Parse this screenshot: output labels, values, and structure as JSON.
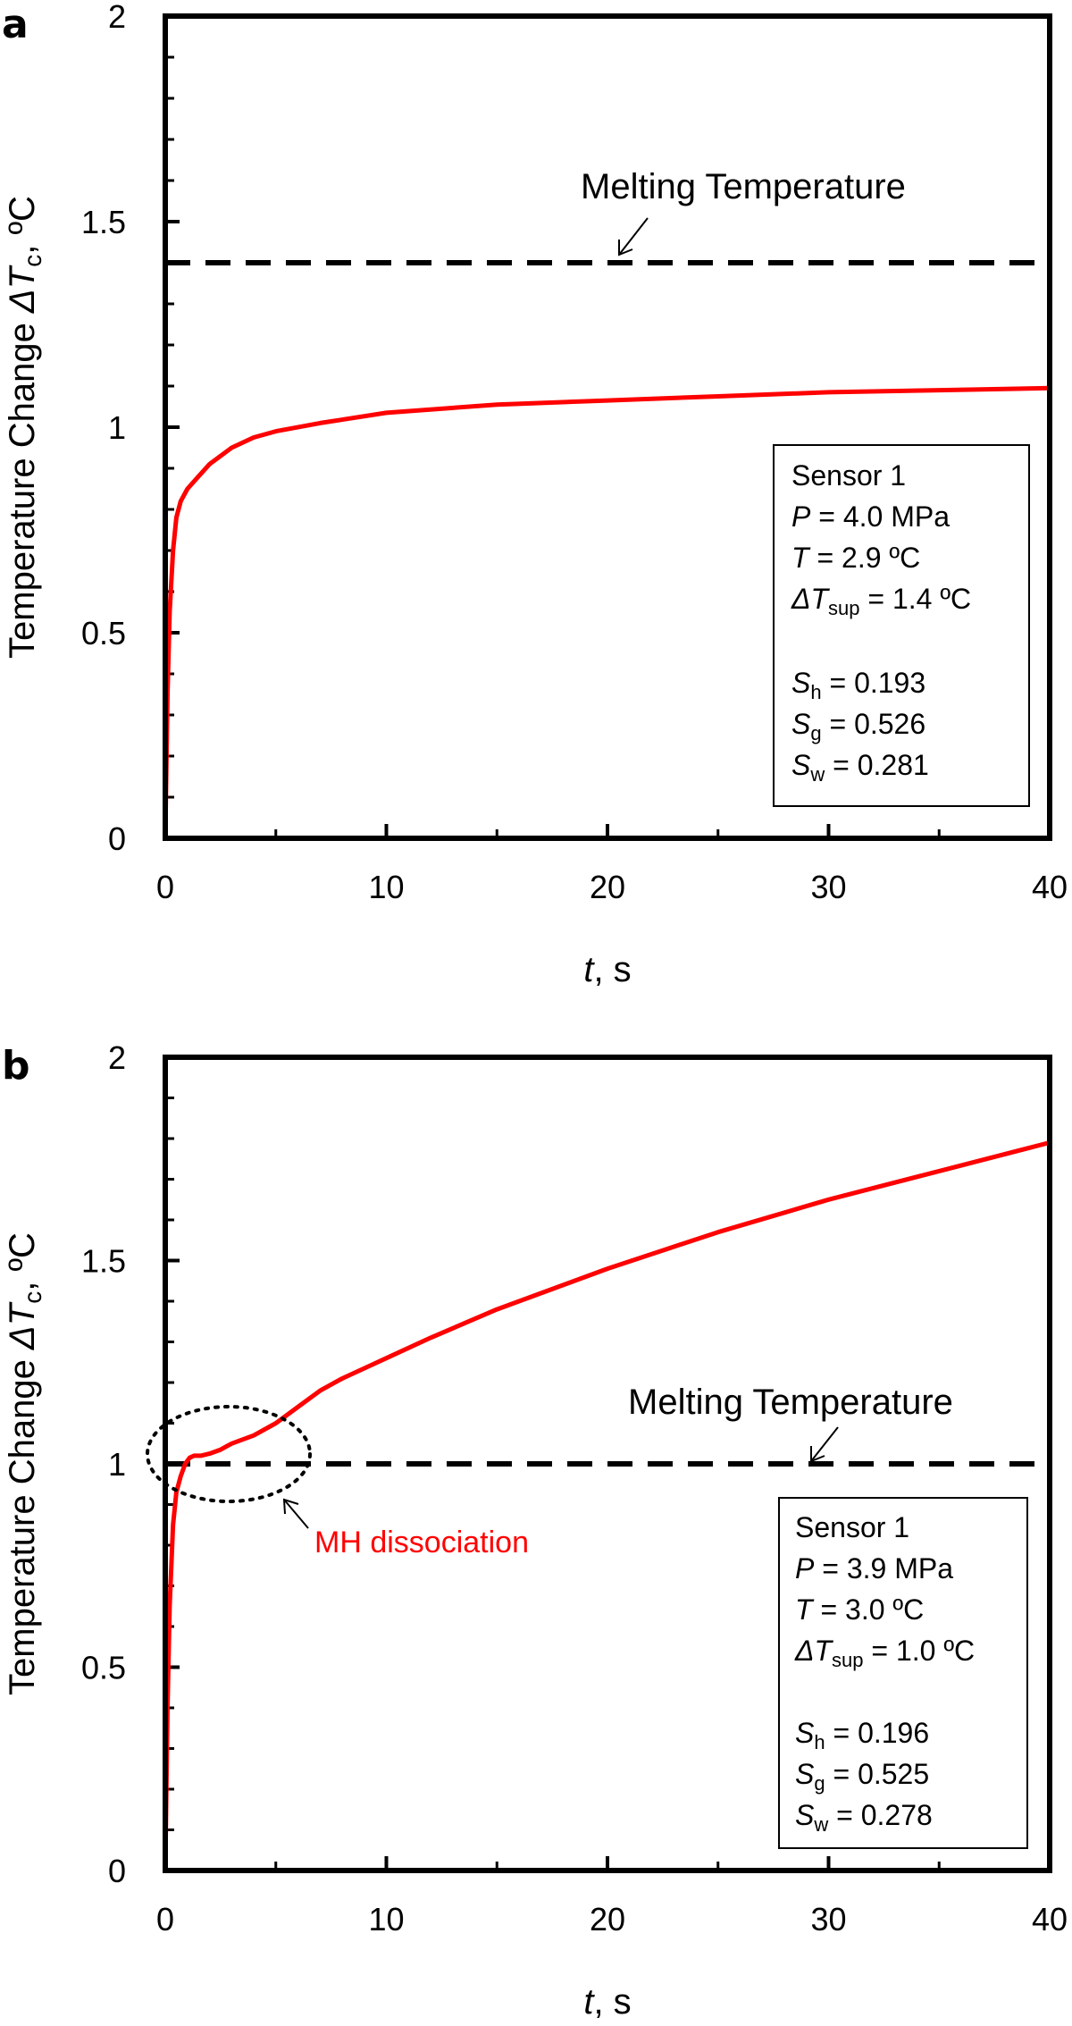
{
  "chart_data": [
    {
      "type": "line",
      "panel_label": "a",
      "xlabel_var": "t",
      "xlabel_unit": ", s",
      "ylabel_pre": "Temperature Change ",
      "ylabel_sym": "ΔT",
      "ylabel_sub": "c",
      "ylabel_unit": ", ºC",
      "xlim": [
        0,
        40
      ],
      "ylim": [
        0,
        2
      ],
      "xticks": [
        "0",
        "10",
        "20",
        "30",
        "40"
      ],
      "yticks": [
        "0",
        "0.5",
        "1",
        "1.5",
        "2"
      ],
      "series": [
        {
          "name": "Sensor 1",
          "color": "#ff0000",
          "x": [
            0,
            0.1,
            0.2,
            0.35,
            0.5,
            0.7,
            1.0,
            1.5,
            2,
            3,
            4,
            5,
            7,
            10,
            15,
            20,
            25,
            30,
            35,
            40
          ],
          "y": [
            0,
            0.35,
            0.55,
            0.7,
            0.78,
            0.82,
            0.85,
            0.88,
            0.91,
            0.95,
            0.975,
            0.99,
            1.01,
            1.035,
            1.055,
            1.065,
            1.075,
            1.085,
            1.09,
            1.095
          ]
        }
      ],
      "hline": {
        "y": 1.4,
        "label": "Melting Temperature"
      },
      "infobox": {
        "title": "Sensor 1",
        "p_var": "P",
        "p_val": " = 4.0 MPa",
        "t_var": "T",
        "t_val": " = 2.9 ºC",
        "dt_var": "ΔT",
        "dt_sub": "sup",
        "dt_val": " = 1.4 ºC",
        "sh_var": "S",
        "sh_sub": "h",
        "sh_val": " = 0.193",
        "sg_var": "S",
        "sg_sub": "g",
        "sg_val": " = 0.526",
        "sw_var": "S",
        "sw_sub": "w",
        "sw_val": " = 0.281"
      }
    },
    {
      "type": "line",
      "panel_label": "b",
      "xlabel_var": "t",
      "xlabel_unit": ", s",
      "ylabel_pre": "Temperature Change ",
      "ylabel_sym": "ΔT",
      "ylabel_sub": "c",
      "ylabel_unit": ", ºC",
      "xlim": [
        0,
        40
      ],
      "ylim": [
        0,
        2
      ],
      "xticks": [
        "0",
        "10",
        "20",
        "30",
        "40"
      ],
      "yticks": [
        "0",
        "0.5",
        "1",
        "1.5",
        "2"
      ],
      "series": [
        {
          "name": "Sensor 1",
          "color": "#ff0000",
          "x": [
            0,
            0.1,
            0.2,
            0.35,
            0.5,
            0.7,
            0.9,
            1.1,
            1.3,
            1.6,
            2,
            2.5,
            3,
            4,
            5,
            6,
            7,
            8,
            10,
            12,
            15,
            20,
            25,
            30,
            35,
            40
          ],
          "y": [
            0,
            0.4,
            0.65,
            0.85,
            0.93,
            0.97,
            1.0,
            1.015,
            1.02,
            1.02,
            1.025,
            1.035,
            1.05,
            1.07,
            1.1,
            1.14,
            1.18,
            1.21,
            1.26,
            1.31,
            1.38,
            1.48,
            1.57,
            1.65,
            1.72,
            1.79
          ]
        }
      ],
      "hline": {
        "y": 1.0,
        "label": "Melting Temperature"
      },
      "annotation": {
        "label": "MH dissociation",
        "color": "#ff0000"
      },
      "infobox": {
        "title": "Sensor 1",
        "p_var": "P",
        "p_val": " = 3.9 MPa",
        "t_var": "T",
        "t_val": " = 3.0 ºC",
        "dt_var": "ΔT",
        "dt_sub": "sup",
        "dt_val": " = 1.0 ºC",
        "sh_var": "S",
        "sh_sub": "h",
        "sh_val": " = 0.196",
        "sg_var": "S",
        "sg_sub": "g",
        "sg_val": " = 0.525",
        "sw_var": "S",
        "sw_sub": "w",
        "sw_val": " = 0.278"
      }
    }
  ]
}
